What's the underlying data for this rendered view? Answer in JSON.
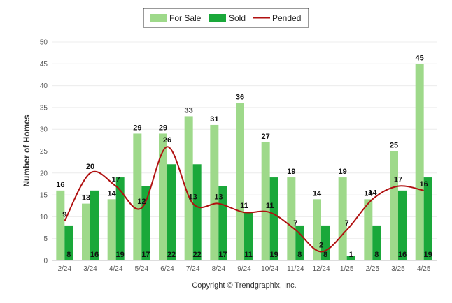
{
  "chart_data": {
    "type": "bar",
    "categories": [
      "2/24",
      "3/24",
      "4/24",
      "5/24",
      "6/24",
      "7/24",
      "8/24",
      "9/24",
      "10/24",
      "11/24",
      "12/24",
      "1/25",
      "2/25",
      "3/25",
      "4/25"
    ],
    "series": [
      {
        "name": "For Sale",
        "type": "bar",
        "color": "#9ed98a",
        "values": [
          16,
          13,
          14,
          29,
          29,
          33,
          31,
          36,
          27,
          19,
          14,
          19,
          14,
          25,
          45
        ]
      },
      {
        "name": "Sold",
        "type": "bar",
        "color": "#1aa83a",
        "values": [
          8,
          16,
          19,
          17,
          22,
          22,
          17,
          11,
          19,
          8,
          8,
          1,
          8,
          16,
          19
        ]
      },
      {
        "name": "Pended",
        "type": "line",
        "color": "#b01010",
        "values": [
          9,
          20,
          17,
          12,
          26,
          13,
          13,
          11,
          11,
          7,
          2,
          7,
          14,
          17,
          16
        ]
      }
    ],
    "ylabel": "Number of Homes",
    "xlabel": "",
    "ylim": [
      0,
      50
    ],
    "yticks": [
      0,
      5,
      10,
      15,
      20,
      25,
      30,
      35,
      40,
      45,
      50
    ],
    "grid": true,
    "legend_position": "top-center"
  },
  "footer": "Copyright © Trendgraphix, Inc."
}
